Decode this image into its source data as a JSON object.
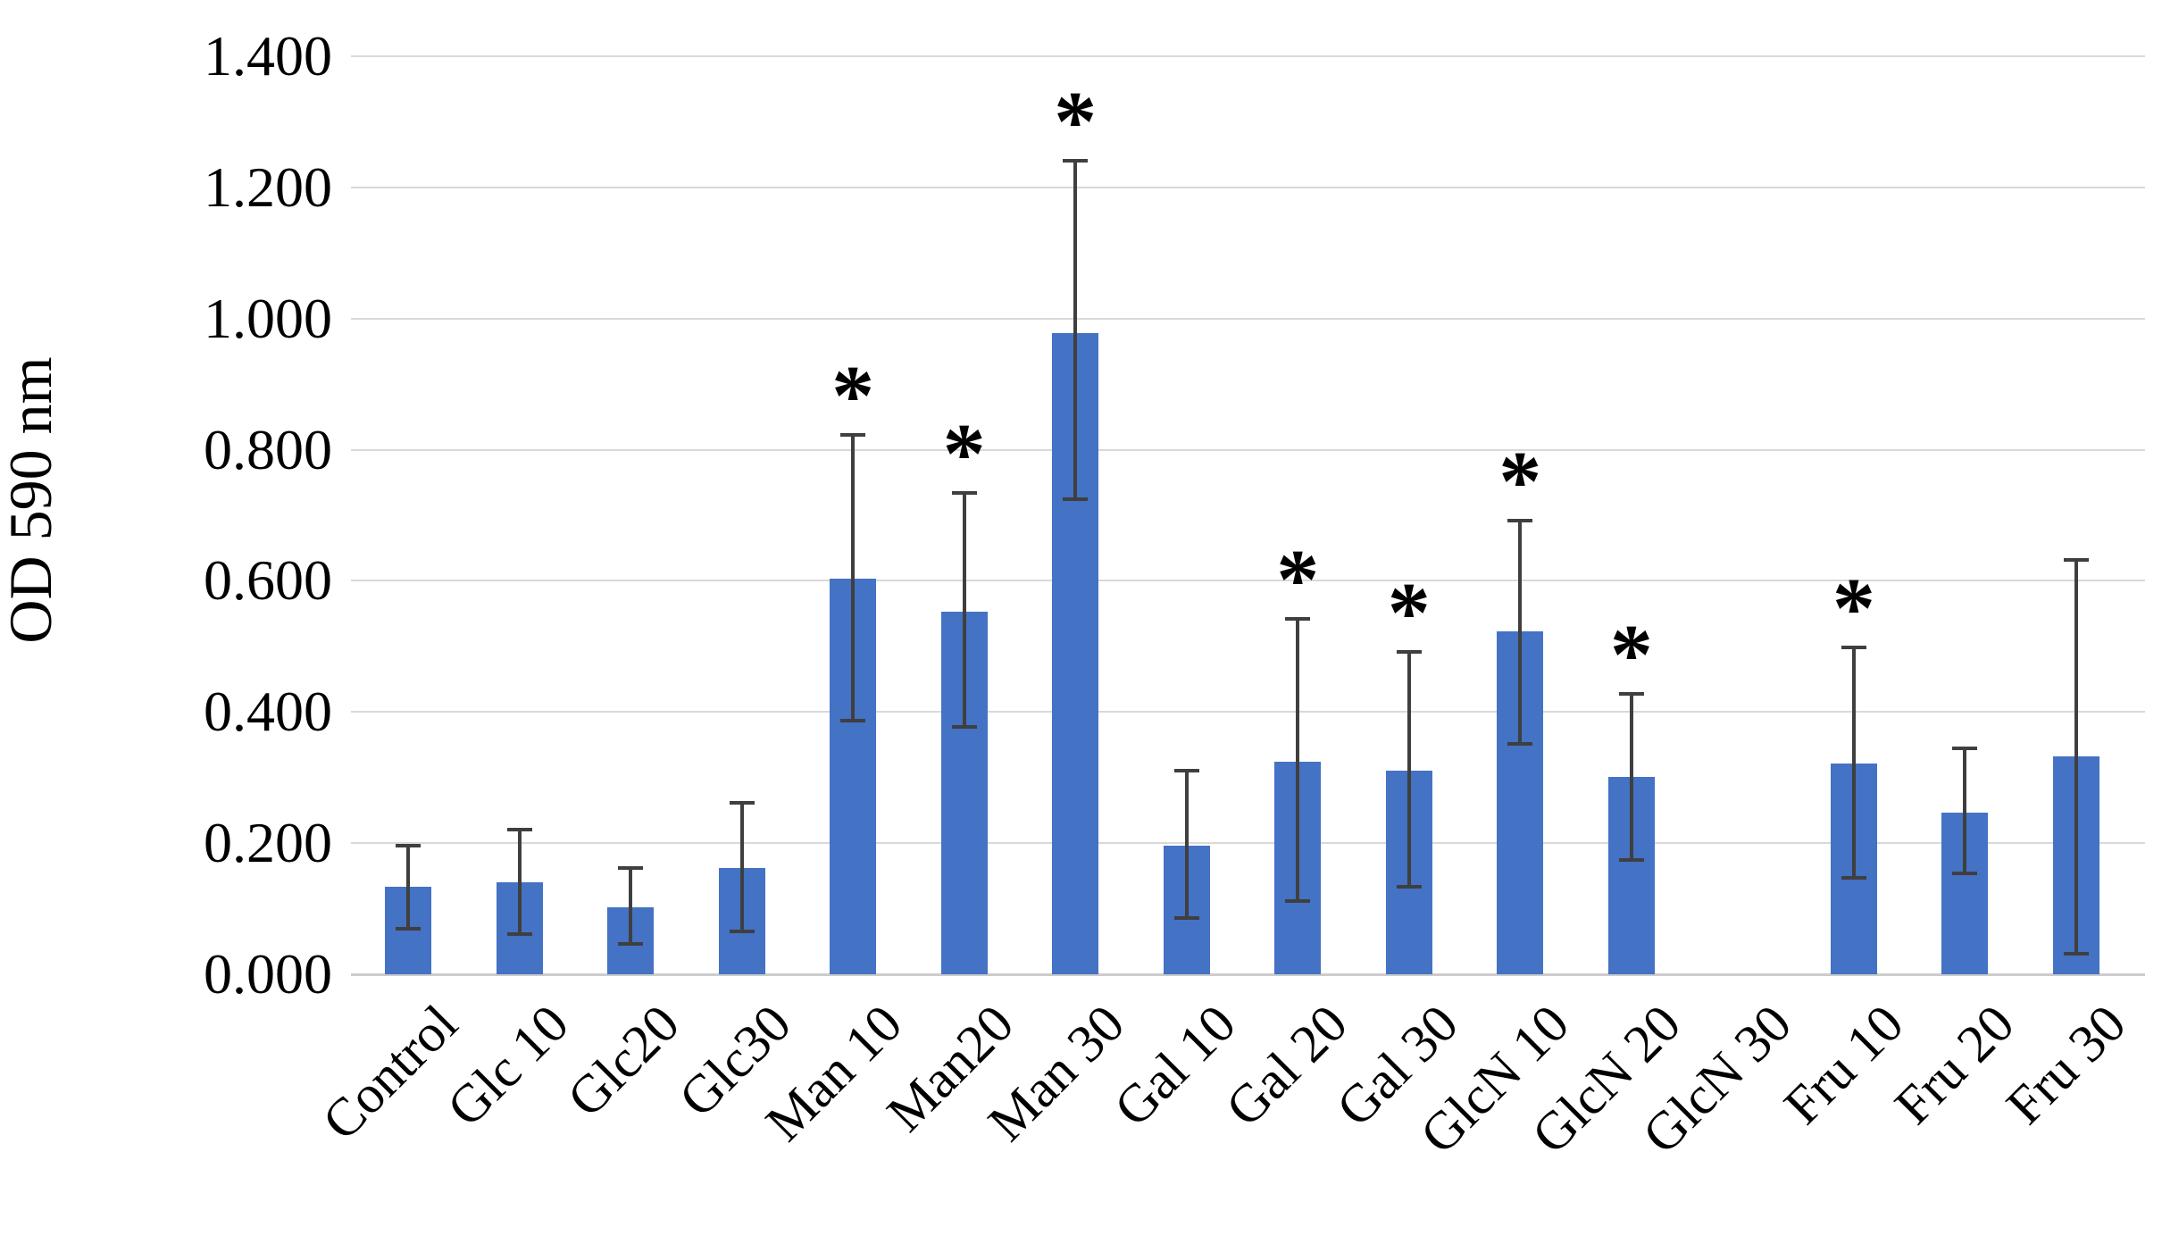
{
  "chart_data": {
    "type": "bar",
    "title": "",
    "ylabel": "OD 590 nm",
    "xlabel": "",
    "ylim": [
      0,
      1.4
    ],
    "ytick_step": 0.2,
    "ytick_labels": [
      "0.000",
      "0.200",
      "0.400",
      "0.600",
      "0.800",
      "1.000",
      "1.200",
      "1.400"
    ],
    "grid": true,
    "legend": false,
    "bar_color": "#4472c4",
    "error_bar_color": "#3f3f3f",
    "gridline_color": "#d9d9d9",
    "significance_marker": "*",
    "categories": [
      "Control",
      "Glc 10",
      "Glc20",
      "Glc30",
      "Man 10",
      "Man20",
      "Man 30",
      "Gal 10",
      "Gal 20",
      "Gal 30",
      "GlcN 10",
      "GlcN 20",
      "GlcN 30",
      "Fru 10",
      "Fru 20",
      "Fru 30"
    ],
    "values": [
      0.133,
      0.14,
      0.102,
      0.162,
      0.603,
      0.553,
      0.978,
      0.196,
      0.324,
      0.311,
      0.523,
      0.301,
      0.0,
      0.321,
      0.246,
      0.332
    ],
    "error_top": [
      0.196,
      0.221,
      0.162,
      0.262,
      0.822,
      0.734,
      1.241,
      0.31,
      0.542,
      0.492,
      0.692,
      0.428,
      null,
      0.498,
      0.344,
      0.632
    ],
    "error_bottom": [
      0.069,
      0.061,
      0.046,
      0.065,
      0.387,
      0.377,
      0.724,
      0.086,
      0.111,
      0.134,
      0.352,
      0.174,
      null,
      0.147,
      0.154,
      0.031
    ],
    "significant": [
      false,
      false,
      false,
      false,
      true,
      true,
      true,
      false,
      true,
      true,
      true,
      true,
      false,
      true,
      false,
      false
    ]
  }
}
